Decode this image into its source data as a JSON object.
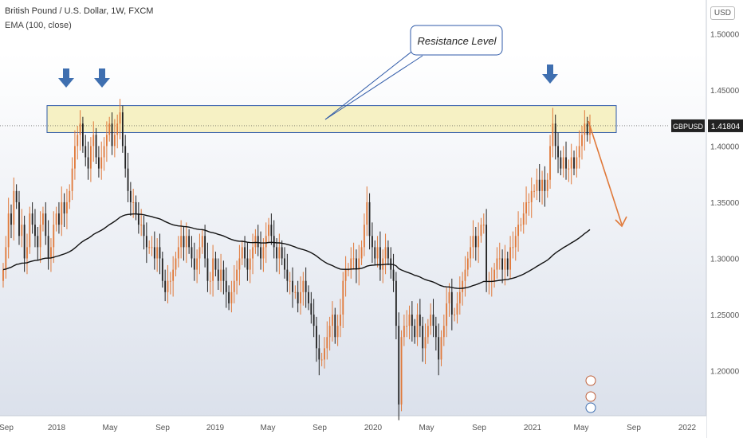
{
  "chart_data": {
    "type": "candlestick",
    "title": "British Pound / U.S. Dollar, 1W, FXCM",
    "indicator": "EMA (100, close)",
    "currency": "USD",
    "ylim": [
      1.16,
      1.53
    ],
    "y_ticks": [
      "1.50000",
      "1.45000",
      "1.40000",
      "1.35000",
      "1.30000",
      "1.25000",
      "1.20000"
    ],
    "y_tick_values": [
      1.5,
      1.45,
      1.4,
      1.35,
      1.3,
      1.25,
      1.2
    ],
    "x_ticks": [
      "Sep",
      "2018",
      "May",
      "Sep",
      "2019",
      "May",
      "Sep",
      "2020",
      "May",
      "Sep",
      "2021",
      "May",
      "Sep",
      "2022"
    ],
    "symbol_label": "GBPUSD",
    "last_price": "1.41804",
    "last_price_value": 1.41804,
    "annotation": "Resistance Level",
    "resistance_zone": [
      1.412,
      1.436
    ],
    "up_color": "#e0793a",
    "down_color": "#222222",
    "close_series": [
      1.29,
      1.31,
      1.34,
      1.33,
      1.36,
      1.35,
      1.32,
      1.33,
      1.3,
      1.31,
      1.34,
      1.33,
      1.32,
      1.31,
      1.33,
      1.34,
      1.32,
      1.3,
      1.31,
      1.33,
      1.34,
      1.33,
      1.35,
      1.34,
      1.35,
      1.36,
      1.38,
      1.4,
      1.41,
      1.42,
      1.4,
      1.39,
      1.38,
      1.4,
      1.41,
      1.39,
      1.38,
      1.39,
      1.4,
      1.41,
      1.42,
      1.4,
      1.41,
      1.42,
      1.43,
      1.4,
      1.38,
      1.36,
      1.35,
      1.35,
      1.34,
      1.33,
      1.33,
      1.32,
      1.31,
      1.31,
      1.31,
      1.3,
      1.31,
      1.3,
      1.28,
      1.27,
      1.28,
      1.28,
      1.29,
      1.3,
      1.31,
      1.32,
      1.31,
      1.32,
      1.31,
      1.3,
      1.29,
      1.3,
      1.31,
      1.32,
      1.3,
      1.28,
      1.28,
      1.3,
      1.29,
      1.28,
      1.29,
      1.28,
      1.27,
      1.26,
      1.27,
      1.28,
      1.29,
      1.3,
      1.31,
      1.3,
      1.29,
      1.3,
      1.31,
      1.32,
      1.31,
      1.3,
      1.31,
      1.32,
      1.33,
      1.32,
      1.31,
      1.3,
      1.31,
      1.3,
      1.29,
      1.28,
      1.28,
      1.27,
      1.27,
      1.26,
      1.27,
      1.28,
      1.27,
      1.26,
      1.25,
      1.24,
      1.22,
      1.21,
      1.21,
      1.22,
      1.23,
      1.24,
      1.25,
      1.23,
      1.24,
      1.25,
      1.28,
      1.29,
      1.29,
      1.3,
      1.3,
      1.29,
      1.3,
      1.31,
      1.33,
      1.35,
      1.32,
      1.31,
      1.3,
      1.31,
      1.29,
      1.3,
      1.31,
      1.3,
      1.29,
      1.28,
      1.24,
      1.17,
      1.23,
      1.24,
      1.24,
      1.25,
      1.24,
      1.23,
      1.25,
      1.24,
      1.22,
      1.23,
      1.24,
      1.25,
      1.24,
      1.23,
      1.21,
      1.23,
      1.24,
      1.26,
      1.27,
      1.25,
      1.25,
      1.26,
      1.27,
      1.28,
      1.29,
      1.3,
      1.31,
      1.32,
      1.31,
      1.32,
      1.33,
      1.33,
      1.28,
      1.28,
      1.28,
      1.29,
      1.3,
      1.3,
      1.29,
      1.3,
      1.29,
      1.31,
      1.31,
      1.32,
      1.33,
      1.33,
      1.34,
      1.35,
      1.35,
      1.36,
      1.36,
      1.37,
      1.36,
      1.37,
      1.36,
      1.37,
      1.4,
      1.42,
      1.4,
      1.39,
      1.38,
      1.39,
      1.38,
      1.38,
      1.39,
      1.38,
      1.39,
      1.4,
      1.41,
      1.42,
      1.41,
      1.418
    ]
  }
}
